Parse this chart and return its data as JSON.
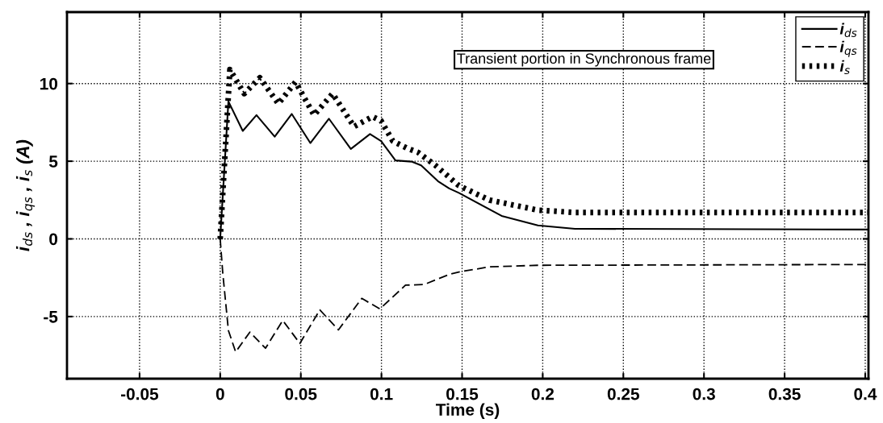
{
  "chart_data": {
    "type": "line",
    "xlabel": "Time (s)",
    "ylabel": "i$_{ds}$ , i$_{qs}$ , i$_{s}$ (A)",
    "annotations": [
      "Transient portion in Synchronous frame"
    ],
    "xlim": [
      -0.095,
      0.402
    ],
    "xticks": [
      {
        "value": -0.05,
        "label": "-0.05"
      },
      0,
      0.05,
      0.1,
      0.15,
      0.2,
      0.25,
      0.3,
      0.35,
      0.4
    ],
    "ylim": [
      -9,
      14.6
    ],
    "yticks": [
      -5,
      0,
      5,
      10
    ],
    "grid": true,
    "legend": "top right",
    "series": [
      {
        "name": "i$_{ds}$",
        "color": "#000000",
        "line_style": "solid",
        "x": [
          0,
          0.0051,
          0.014,
          0.0225,
          0.0338,
          0.0444,
          0.0559,
          0.0674,
          0.081,
          0.0929,
          0.0998,
          0.1087,
          0.119,
          0.1246,
          0.135,
          0.142,
          0.148,
          0.1745,
          0.197,
          0.22,
          0.402
        ],
        "values": [
          0,
          8.85,
          6.95,
          7.97,
          6.58,
          8.04,
          6.17,
          7.74,
          5.79,
          6.75,
          6.3,
          5.05,
          4.97,
          4.73,
          3.72,
          3.25,
          2.96,
          1.48,
          0.87,
          0.65,
          0.6
        ]
      },
      {
        "name": "i$_{qs}$",
        "color": "#000000",
        "line_style": "dashed",
        "x": [
          0,
          0.0016,
          0.0051,
          0.0096,
          0.0184,
          0.0281,
          0.0388,
          0.0494,
          0.0618,
          0.0733,
          0.0878,
          0.099,
          0.1149,
          0.1264,
          0.142,
          0.148,
          0.167,
          0.197,
          0.402
        ],
        "values": [
          0,
          -2.2,
          -5.9,
          -7.28,
          -6.0,
          -7.04,
          -5.25,
          -6.73,
          -4.57,
          -5.86,
          -3.83,
          -4.51,
          -2.98,
          -2.94,
          -2.29,
          -2.13,
          -1.8,
          -1.7,
          -1.65
        ]
      },
      {
        "name": "i$_{s}$",
        "color": "#000000",
        "line_style": "dotted",
        "x": [
          0,
          0.006,
          0.0149,
          0.0246,
          0.0361,
          0.0467,
          0.0582,
          0.0697,
          0.083,
          0.0945,
          0.0998,
          0.107,
          0.1158,
          0.1228,
          0.1335,
          0.148,
          0.167,
          0.197,
          0.22,
          0.402
        ],
        "values": [
          0,
          10.9,
          9.35,
          10.37,
          8.7,
          10.1,
          7.97,
          9.35,
          7.23,
          7.87,
          7.6,
          6.3,
          5.84,
          5.56,
          4.73,
          3.43,
          2.5,
          1.85,
          1.7,
          1.7
        ]
      }
    ]
  }
}
